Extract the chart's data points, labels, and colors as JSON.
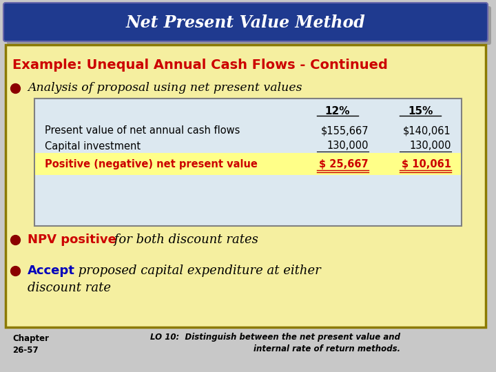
{
  "title": "Net Present Value Method",
  "title_bg": "#1F3A8F",
  "title_color": "#FFFFFF",
  "shadow_color": "#888888",
  "bg_color": "#C8C8C8",
  "main_bg": "#F5EFA0",
  "main_border": "#8B7A00",
  "subtitle": "Example: Unequal Annual Cash Flows - Continued",
  "subtitle_color": "#CC0000",
  "bullet_color": "#8B0000",
  "bullet1": "Analysis of proposal using net present values",
  "bullet1_color": "#000000",
  "bullet2_part1": "NPV positive",
  "bullet2_part1_color": "#CC0000",
  "bullet2_part2": " for both discount rates",
  "bullet2_part2_color": "#000000",
  "bullet3_part1": "Accept",
  "bullet3_part1_color": "#0000BB",
  "bullet3_part2a": " proposed capital expenditure at either",
  "bullet3_part2b": "discount rate",
  "bullet3_part2_color": "#000000",
  "table_bg": "#DCE8F0",
  "table_border": "#808080",
  "table_header_12": "12%",
  "table_header_15": "15%",
  "table_row1_label": "Present value of net annual cash flows",
  "table_row1_val1": "$155,667",
  "table_row1_val2": "$140,061",
  "table_row2_label": "Capital investment",
  "table_row2_val1": "130,000",
  "table_row2_val2": "130,000",
  "table_row3_label": "Positive (negative) net present value",
  "table_row3_val1": "$ 25,667",
  "table_row3_val2": "$ 10,061",
  "table_row3_color": "#CC0000",
  "table_row3_bg": "#FFFF88",
  "footer_chapter": "Chapter\n26-57",
  "footer_lo": "LO 10:  Distinguish between the net present value and\ninternal rate of return methods.",
  "footer_color": "#000000"
}
